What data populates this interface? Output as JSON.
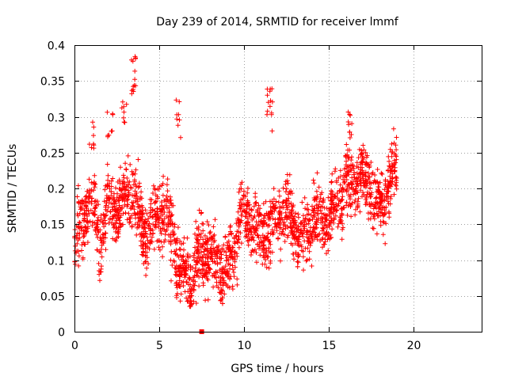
{
  "chart_data": {
    "type": "scatter",
    "title": "Day 239 of 2014, SRMTID for receiver lmmf",
    "xlabel": "GPS time / hours",
    "ylabel": "SRMTID / TECUs",
    "xlim": [
      0,
      24
    ],
    "ylim": [
      0,
      0.4
    ],
    "xticks": [
      0,
      5,
      10,
      15,
      20
    ],
    "yticks": [
      0,
      0.05,
      0.1,
      0.15,
      0.2,
      0.25,
      0.3,
      0.35,
      0.4
    ],
    "ytick_labels": [
      "0",
      "0.05",
      "0.1",
      "0.15",
      "0.2",
      "0.25",
      "0.3",
      "0.35",
      "0.4"
    ],
    "grid": true,
    "marker": "plus",
    "color": "#ff0000",
    "trend": {
      "x": [
        0,
        0.5,
        1,
        1.5,
        2,
        2.5,
        3,
        3.5,
        4,
        4.5,
        5,
        5.5,
        6,
        6.5,
        7,
        7.5,
        8,
        8.5,
        9,
        9.5,
        10,
        10.5,
        11,
        11.5,
        12,
        12.5,
        13,
        13.5,
        14,
        14.5,
        15,
        15.5,
        16,
        16.5,
        17,
        17.5,
        18,
        18.5,
        19
      ],
      "y": [
        0.12,
        0.14,
        0.18,
        0.14,
        0.2,
        0.16,
        0.17,
        0.19,
        0.16,
        0.15,
        0.16,
        0.14,
        0.12,
        0.09,
        0.08,
        0.09,
        0.1,
        0.11,
        0.1,
        0.12,
        0.14,
        0.15,
        0.16,
        0.15,
        0.14,
        0.15,
        0.16,
        0.15,
        0.16,
        0.14,
        0.15,
        0.2,
        0.22,
        0.2,
        0.19,
        0.2,
        0.19,
        0.21,
        0.21
      ]
    },
    "spread": 0.045,
    "n_points": 2300,
    "bursts": [
      {
        "x": 3.5,
        "y_range": [
          0.33,
          0.385
        ],
        "n": 14
      },
      {
        "x": 11.5,
        "y_range": [
          0.28,
          0.34
        ],
        "n": 14
      },
      {
        "x": 2.9,
        "y_range": [
          0.29,
          0.34
        ],
        "n": 8
      },
      {
        "x": 6.1,
        "y_range": [
          0.27,
          0.33
        ],
        "n": 8
      },
      {
        "x": 16.3,
        "y_range": [
          0.27,
          0.31
        ],
        "n": 10
      },
      {
        "x": 2.1,
        "y_range": [
          0.27,
          0.31
        ],
        "n": 8
      },
      {
        "x": 1.0,
        "y_range": [
          0.25,
          0.3
        ],
        "n": 8
      }
    ],
    "outlier": {
      "x": 7.5,
      "y": 0.0
    }
  }
}
